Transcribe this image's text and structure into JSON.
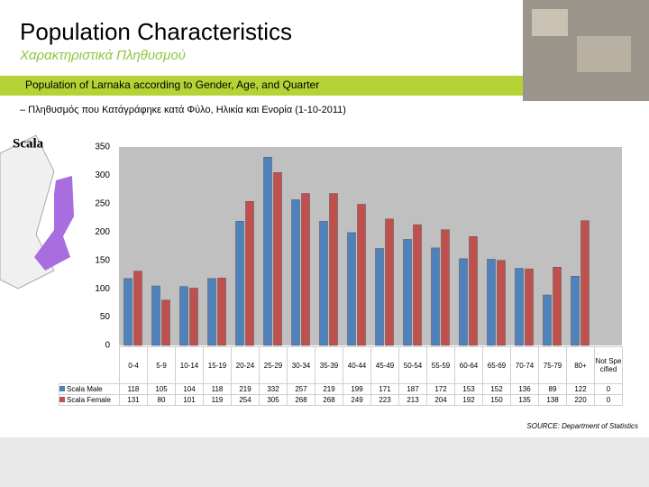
{
  "header": {
    "title": "Population Characteristics",
    "subtitle": "Χαρακτηριστικά Πληθυσμού",
    "banner": "Population of Larnaka according to Gender, Age, and Quarter",
    "subheading": "– Πληθυσμός που Κατάγράφηκε κατά Φύλο, Ηλικία και Ενορία (1-10-2011)"
  },
  "map_label": "Scala",
  "chart_data": {
    "type": "bar",
    "categories": [
      "0-4",
      "5-9",
      "10-14",
      "15-19",
      "20-24",
      "25-29",
      "30-34",
      "35-39",
      "40-44",
      "45-49",
      "50-54",
      "55-59",
      "60-64",
      "65-69",
      "70-74",
      "75-79",
      "80+",
      "Not Specified"
    ],
    "series": [
      {
        "name": "Scala Male",
        "color": "#4f81bd",
        "values": [
          118,
          105,
          104,
          118,
          219,
          332,
          257,
          219,
          199,
          171,
          187,
          172,
          153,
          152,
          136,
          89,
          122,
          0
        ]
      },
      {
        "name": "Scala Female",
        "color": "#c0504d",
        "values": [
          131,
          80,
          101,
          119,
          254,
          305,
          268,
          268,
          249,
          223,
          213,
          204,
          192,
          150,
          135,
          138,
          220,
          0
        ]
      }
    ],
    "ylim": [
      0,
      350
    ],
    "yticks": [
      0,
      50,
      100,
      150,
      200,
      250,
      300,
      350
    ]
  },
  "source": "SOURCE: Department of Statistics"
}
